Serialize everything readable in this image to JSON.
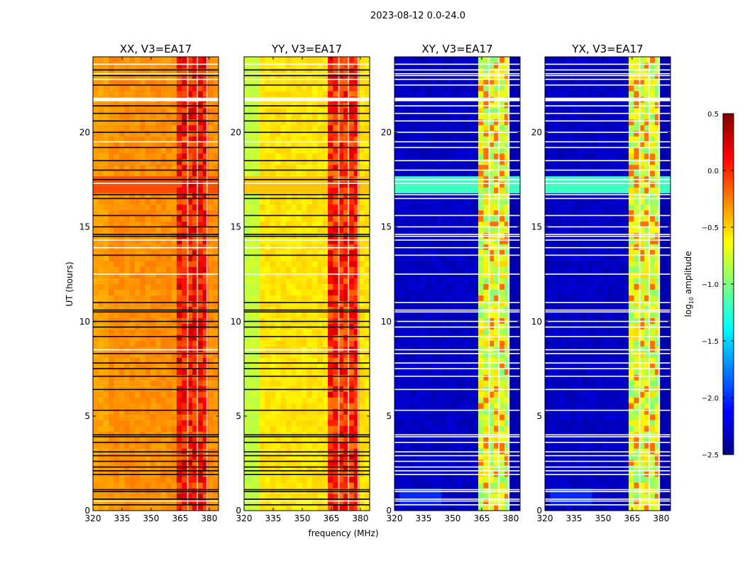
{
  "chart_data": {
    "type": "heatmap",
    "title": "2023-08-12 0.0-24.0",
    "xlabel": "frequency (MHz)",
    "ylabel": "UT (hours)",
    "xlim": [
      320,
      384.8
    ],
    "ylim": [
      0,
      24
    ],
    "xticks": [
      320,
      335,
      350,
      365,
      380
    ],
    "yticks": [
      0,
      5,
      10,
      15,
      20
    ],
    "colorbar": {
      "label": "log10 amplitude",
      "label_main": "log",
      "label_sub": "10",
      "label_rest": " amplitude",
      "range": [
        -2.5,
        0.5
      ],
      "ticks": [
        "0.5",
        "0.0",
        "−0.5",
        "−1.0",
        "−1.5",
        "−2.0",
        "−2.5"
      ],
      "tick_values": [
        0.5,
        0,
        -0.5,
        -1,
        -1.5,
        -2,
        -2.5
      ],
      "colormap": "jet"
    },
    "rfi_band_mhz": [
      363,
      380
    ],
    "channel_gaps_mhz": [
      368.5,
      373.5,
      378.5
    ],
    "flagged_hours": [
      0.3,
      0.6,
      1.0,
      1.1,
      1.9,
      2.1,
      2.3,
      2.6,
      2.9,
      3.1,
      3.6,
      3.9,
      4.0,
      5.3,
      6.4,
      7.1,
      7.5,
      7.8,
      8.3,
      9.2,
      9.7,
      10.0,
      10.5,
      10.6,
      11.0,
      13.5,
      14.5,
      14.6,
      15.0,
      15.6,
      16.5,
      16.7,
      17.5,
      18.0,
      18.5,
      19.2,
      20.0,
      20.6,
      21.0,
      21.4,
      22.5,
      23.0,
      23.3
    ],
    "gap_hours": [
      0.5,
      8.5,
      12.5,
      13.9,
      14.3,
      17.3,
      19.5,
      21.8,
      22.8,
      23.1,
      23.6
    ],
    "panels": [
      {
        "title": "XX, V3=EA17",
        "background": -0.3,
        "band": 0.05,
        "edge": -0.35,
        "highlight_17h": -0.1
      },
      {
        "title": "YY, V3=EA17",
        "background": -0.55,
        "band": 0.0,
        "edge": -0.8,
        "highlight_17h": -0.45
      },
      {
        "title": "XY, V3=EA17",
        "background": -2.3,
        "band": -0.75,
        "edge": -2.3,
        "highlight_17h": -1.2
      },
      {
        "title": "YX, V3=EA17",
        "background": -2.3,
        "band": -0.75,
        "edge": -2.3,
        "highlight_17h": -1.2
      }
    ]
  }
}
